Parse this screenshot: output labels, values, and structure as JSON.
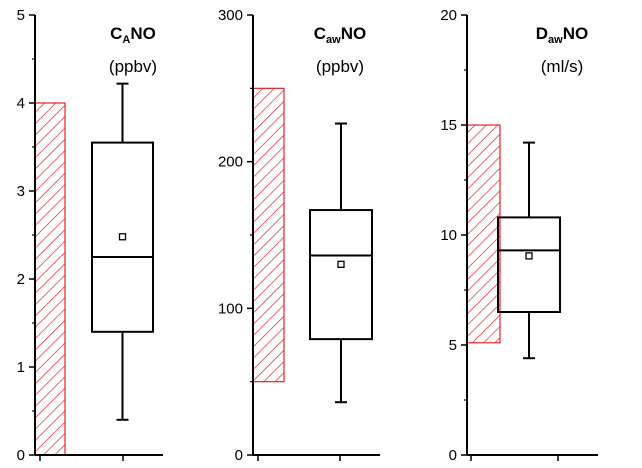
{
  "chart_data": [
    {
      "type": "box",
      "title": {
        "main": "C",
        "sub": "A",
        "suffix": "NO"
      },
      "unit": "(ppbv)",
      "ylim": [
        0,
        5
      ],
      "yticks": [
        0,
        1,
        2,
        3,
        4,
        5
      ],
      "reference_range": [
        0,
        4.0
      ],
      "box": {
        "whisker_low": 0.4,
        "q1": 1.4,
        "median": 2.25,
        "q3": 3.55,
        "whisker_high": 4.22,
        "mean": 2.48
      },
      "grid": false
    },
    {
      "type": "box",
      "title": {
        "main": "C",
        "sub": "aw",
        "suffix": "NO"
      },
      "unit": "(ppbv)",
      "ylim": [
        0,
        300
      ],
      "yticks": [
        0,
        100,
        200,
        300
      ],
      "reference_range": [
        50,
        250
      ],
      "box": {
        "whisker_low": 36,
        "q1": 79,
        "median": 136,
        "q3": 167,
        "whisker_high": 226,
        "mean": 130
      },
      "grid": false
    },
    {
      "type": "box",
      "title": {
        "main": "D",
        "sub": "aw",
        "suffix": "NO"
      },
      "unit": "(ml/s)",
      "ylim": [
        0,
        20
      ],
      "yticks": [
        0,
        5,
        10,
        15,
        20
      ],
      "reference_range": [
        5.1,
        15.0
      ],
      "box": {
        "whisker_low": 4.4,
        "q1": 6.5,
        "median": 9.3,
        "q3": 10.8,
        "whisker_high": 14.2,
        "mean": 9.05
      },
      "grid": false
    }
  ],
  "colors": {
    "hatch": "#e0262a",
    "axis": "#000000"
  }
}
